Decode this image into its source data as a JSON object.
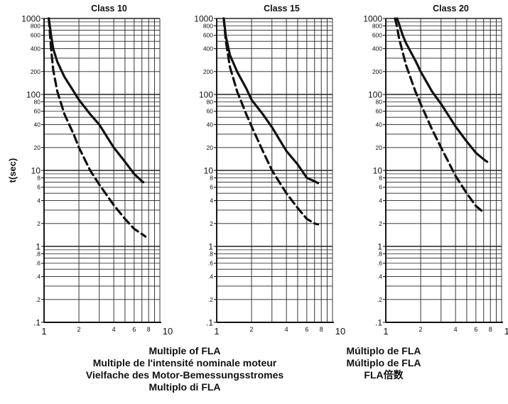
{
  "chart_data": [
    {
      "type": "line",
      "title": "Class 10",
      "ylabel": "t(sec)",
      "xscale": "log",
      "yscale": "log",
      "xlim": [
        1,
        10
      ],
      "ylim": [
        0.1,
        1000
      ],
      "grid": true,
      "series": [
        {
          "style": "solid",
          "x": [
            1.1,
            1.15,
            1.2,
            1.3,
            1.5,
            1.8,
            2,
            2.5,
            3,
            4,
            5,
            6,
            7,
            7.2
          ],
          "y": [
            1000,
            600,
            400,
            270,
            170,
            110,
            85,
            55,
            40,
            20,
            13,
            9,
            7.2,
            7
          ]
        },
        {
          "style": "dashed",
          "x": [
            1.1,
            1.15,
            1.2,
            1.3,
            1.5,
            1.8,
            2,
            2.5,
            3,
            4,
            5,
            6,
            7,
            7.5
          ],
          "y": [
            1000,
            400,
            210,
            110,
            55,
            30,
            20,
            10,
            6.5,
            3.5,
            2.3,
            1.7,
            1.45,
            1.35
          ]
        }
      ],
      "x_ticks": [
        "1",
        "2",
        "4",
        "6",
        "8",
        "10"
      ],
      "y_ticks": [
        "1000",
        "800",
        "600",
        "400",
        "200",
        "100",
        "80",
        "60",
        "40",
        "20",
        "10",
        "8",
        "6",
        "4",
        "2",
        "1",
        ".8",
        ".6",
        ".4",
        ".2",
        ".1"
      ]
    },
    {
      "type": "line",
      "title": "Class 15",
      "xscale": "log",
      "yscale": "log",
      "xlim": [
        1,
        10
      ],
      "ylim": [
        0.1,
        1000
      ],
      "grid": true,
      "series": [
        {
          "style": "solid",
          "x": [
            1.15,
            1.2,
            1.3,
            1.5,
            1.8,
            2,
            2.5,
            3,
            4,
            5,
            6,
            7,
            7.5
          ],
          "y": [
            1000,
            580,
            330,
            200,
            120,
            85,
            55,
            37,
            18,
            12,
            8,
            7.2,
            6.8
          ]
        },
        {
          "style": "dashed",
          "x": [
            1.15,
            1.2,
            1.3,
            1.5,
            1.8,
            2,
            2.5,
            3,
            4,
            5,
            6,
            7,
            7.5
          ],
          "y": [
            1000,
            500,
            230,
            110,
            55,
            38,
            18,
            10,
            5,
            3.2,
            2.3,
            2,
            1.95
          ]
        }
      ],
      "x_ticks": [
        "1",
        "2",
        "4",
        "6",
        "8",
        "10"
      ],
      "y_ticks": [
        "1000",
        "800",
        "600",
        "400",
        "200",
        "100",
        "80",
        "60",
        "40",
        "20",
        "10",
        "8",
        "6",
        "4",
        "2",
        "1",
        ".8",
        ".6",
        ".4",
        ".2",
        ".1"
      ]
    },
    {
      "type": "line",
      "title": "Class 20",
      "xscale": "log",
      "yscale": "log",
      "xlim": [
        1,
        10
      ],
      "ylim": [
        0.1,
        1000
      ],
      "grid": true,
      "series": [
        {
          "style": "solid",
          "x": [
            1.25,
            1.3,
            1.4,
            1.5,
            1.8,
            2,
            2.5,
            3,
            4,
            5,
            6,
            7,
            7.5
          ],
          "y": [
            1000,
            850,
            600,
            470,
            280,
            200,
            110,
            75,
            38,
            24,
            17,
            14,
            13
          ]
        },
        {
          "style": "dashed",
          "x": [
            1.2,
            1.25,
            1.3,
            1.5,
            1.8,
            2,
            2.5,
            3,
            4,
            5,
            6,
            7
          ],
          "y": [
            1000,
            780,
            550,
            240,
            110,
            75,
            35,
            20,
            8.5,
            5,
            3.4,
            2.8
          ]
        }
      ],
      "x_ticks": [
        "1",
        "2",
        "4",
        "6",
        "8",
        "10"
      ],
      "y_ticks": [
        "1000",
        "800",
        "600",
        "400",
        "200",
        "100",
        "80",
        "60",
        "40",
        "20",
        "10",
        "8",
        "6",
        "4",
        "2",
        "1",
        ".8",
        ".6",
        ".4",
        ".2",
        ".1"
      ]
    }
  ],
  "captions": {
    "left": [
      "Multiple of FLA",
      "Multiple de l'intensité nominale moteur",
      "Vielfache des Motor-Bemessungsstromes",
      "Multiplo di FLA"
    ],
    "right": [
      "Múltiplo de FLA",
      "Múltiplo de FLA",
      "FLA倍数"
    ]
  },
  "colors": {
    "line": "#111111",
    "grid": "#222222"
  }
}
